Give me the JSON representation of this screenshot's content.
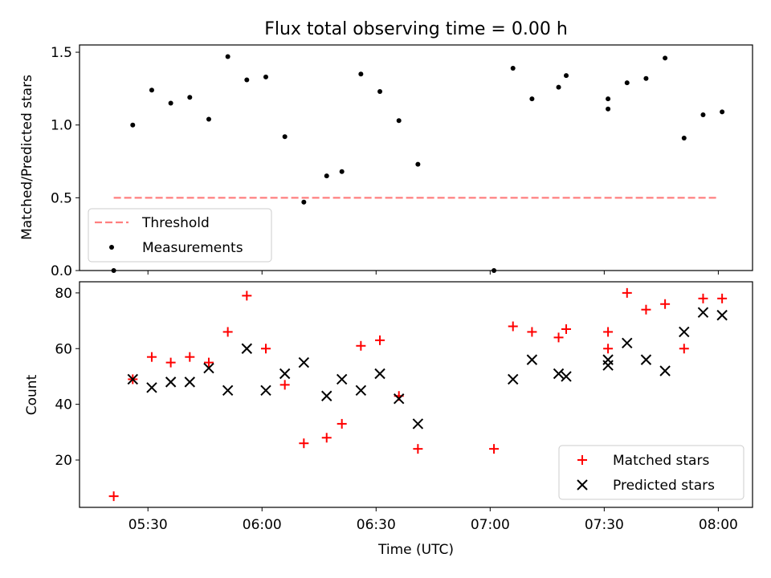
{
  "figure": {
    "title": "Flux total observing time = 0.00 h"
  },
  "chart_data": [
    {
      "type": "scatter",
      "ylabel": "Matched/Predicted stars",
      "xlabel": "",
      "ylim": [
        0,
        1.55
      ],
      "xlim": [
        "05:12",
        "08:09"
      ],
      "yticks": [
        0.0,
        0.5,
        1.0,
        1.5
      ],
      "ytick_labels": [
        "0.0",
        "0.5",
        "1.0",
        "1.5"
      ],
      "grid": false,
      "legend_location": "lower-left",
      "threshold": {
        "name": "Threshold",
        "value": 0.5,
        "x_from": "05:21",
        "x_to": "08:00",
        "color": "#ff7f7f",
        "style": "dashed"
      },
      "series": [
        {
          "name": "Measurements",
          "color": "#000000",
          "marker": "dot",
          "points": [
            [
              "05:21",
              0.0
            ],
            [
              "05:26",
              1.0
            ],
            [
              "05:31",
              1.24
            ],
            [
              "05:36",
              1.15
            ],
            [
              "05:41",
              1.19
            ],
            [
              "05:46",
              1.04
            ],
            [
              "05:51",
              1.47
            ],
            [
              "05:56",
              1.31
            ],
            [
              "06:01",
              1.33
            ],
            [
              "06:06",
              0.92
            ],
            [
              "06:11",
              0.47
            ],
            [
              "06:17",
              0.65
            ],
            [
              "06:21",
              0.68
            ],
            [
              "06:26",
              1.35
            ],
            [
              "06:31",
              1.23
            ],
            [
              "06:36",
              1.03
            ],
            [
              "06:41",
              0.73
            ],
            [
              "07:01",
              0.0
            ],
            [
              "07:06",
              1.39
            ],
            [
              "07:11",
              1.18
            ],
            [
              "07:18",
              1.26
            ],
            [
              "07:20",
              1.34
            ],
            [
              "07:31",
              1.11
            ],
            [
              "07:31",
              1.18
            ],
            [
              "07:36",
              1.29
            ],
            [
              "07:41",
              1.32
            ],
            [
              "07:46",
              1.46
            ],
            [
              "07:51",
              0.91
            ],
            [
              "07:56",
              1.07
            ],
            [
              "08:01",
              1.09
            ]
          ]
        }
      ]
    },
    {
      "type": "scatter",
      "ylabel": "Count",
      "xlabel": "Time (UTC)",
      "ylim": [
        3,
        84
      ],
      "xlim": [
        "05:12",
        "08:09"
      ],
      "yticks": [
        20,
        40,
        60,
        80
      ],
      "ytick_labels": [
        "20",
        "40",
        "60",
        "80"
      ],
      "xticks": [
        "05:30",
        "06:00",
        "06:30",
        "07:00",
        "07:30",
        "08:00"
      ],
      "xtick_labels": [
        "05:30",
        "06:00",
        "06:30",
        "07:00",
        "07:30",
        "08:00"
      ],
      "grid": false,
      "legend_location": "lower-right",
      "series": [
        {
          "name": "Matched stars",
          "color": "#ff0000",
          "marker": "plus",
          "points": [
            [
              "05:21",
              7
            ],
            [
              "05:26",
              49
            ],
            [
              "05:31",
              57
            ],
            [
              "05:36",
              55
            ],
            [
              "05:41",
              57
            ],
            [
              "05:46",
              55
            ],
            [
              "05:51",
              66
            ],
            [
              "05:56",
              79
            ],
            [
              "06:01",
              60
            ],
            [
              "06:06",
              47
            ],
            [
              "06:11",
              26
            ],
            [
              "06:17",
              28
            ],
            [
              "06:21",
              33
            ],
            [
              "06:26",
              61
            ],
            [
              "06:31",
              63
            ],
            [
              "06:36",
              43
            ],
            [
              "06:41",
              24
            ],
            [
              "07:01",
              24
            ],
            [
              "07:06",
              68
            ],
            [
              "07:11",
              66
            ],
            [
              "07:18",
              64
            ],
            [
              "07:20",
              67
            ],
            [
              "07:31",
              60
            ],
            [
              "07:31",
              66
            ],
            [
              "07:36",
              80
            ],
            [
              "07:41",
              74
            ],
            [
              "07:46",
              76
            ],
            [
              "07:51",
              60
            ],
            [
              "07:56",
              78
            ],
            [
              "08:01",
              78
            ]
          ]
        },
        {
          "name": "Predicted stars",
          "color": "#000000",
          "marker": "x",
          "points": [
            [
              "05:26",
              49
            ],
            [
              "05:31",
              46
            ],
            [
              "05:36",
              48
            ],
            [
              "05:41",
              48
            ],
            [
              "05:46",
              53
            ],
            [
              "05:51",
              45
            ],
            [
              "05:56",
              60
            ],
            [
              "06:01",
              45
            ],
            [
              "06:06",
              51
            ],
            [
              "06:11",
              55
            ],
            [
              "06:17",
              43
            ],
            [
              "06:21",
              49
            ],
            [
              "06:26",
              45
            ],
            [
              "06:31",
              51
            ],
            [
              "06:36",
              42
            ],
            [
              "06:41",
              33
            ],
            [
              "07:06",
              49
            ],
            [
              "07:11",
              56
            ],
            [
              "07:18",
              51
            ],
            [
              "07:20",
              50
            ],
            [
              "07:31",
              54
            ],
            [
              "07:31",
              56
            ],
            [
              "07:36",
              62
            ],
            [
              "07:41",
              56
            ],
            [
              "07:46",
              52
            ],
            [
              "07:51",
              66
            ],
            [
              "07:56",
              73
            ],
            [
              "08:01",
              72
            ]
          ]
        }
      ]
    }
  ]
}
